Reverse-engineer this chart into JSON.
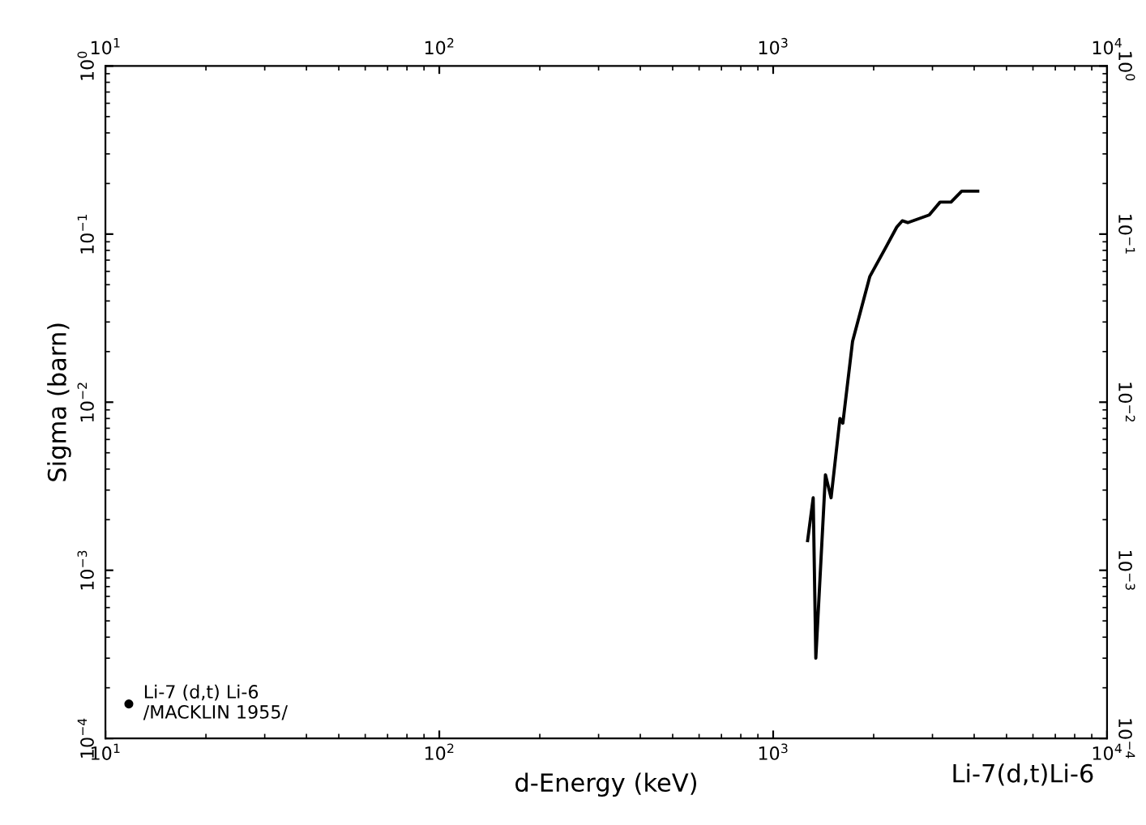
{
  "chart_data": {
    "type": "line",
    "log": "xy",
    "grid": false,
    "legend": "bottom left",
    "marker": "none",
    "line_style": "solid",
    "xlabel": "d-Energy (keV)",
    "ylabel": "Sigma (barn)",
    "xlim": [
      10,
      10000
    ],
    "ylim": [
      0.0001,
      1
    ],
    "xticks": [
      {
        "value": 10,
        "label": "10$^{1}$"
      },
      {
        "value": 100,
        "label": "10$^{2}$"
      },
      {
        "value": 1000,
        "label": "10$^{3}$"
      },
      {
        "value": 10000,
        "label": "10$^{4}$"
      }
    ],
    "yticks": [
      {
        "value": 0.0001,
        "label": "10$^{−4}$"
      },
      {
        "value": 0.001,
        "label": "10$^{−3}$"
      },
      {
        "value": 0.01,
        "label": "10$^{−2}$"
      },
      {
        "value": 0.1,
        "label": "10$^{−1}$"
      },
      {
        "value": 1,
        "label": "10$^{0}$"
      }
    ],
    "annotations": [
      "Li-7(d,t)Li-6"
    ],
    "series": [
      {
        "name": "Li-7 (d,t) Li-6\n/MACKLIN 1955/",
        "color": "#000000",
        "x": [
          1268,
          1318,
          1342,
          1434,
          1491,
          1585,
          1617,
          1729,
          1948,
          2179,
          2345,
          2436,
          2530,
          2934,
          3162,
          3410,
          3670,
          4100
        ],
        "values": [
          0.0015,
          0.0027,
          0.0003,
          0.0037,
          0.0027,
          0.008,
          0.0075,
          0.023,
          0.056,
          0.084,
          0.11,
          0.12,
          0.117,
          0.13,
          0.155,
          0.155,
          0.18,
          0.18
        ]
      }
    ]
  }
}
